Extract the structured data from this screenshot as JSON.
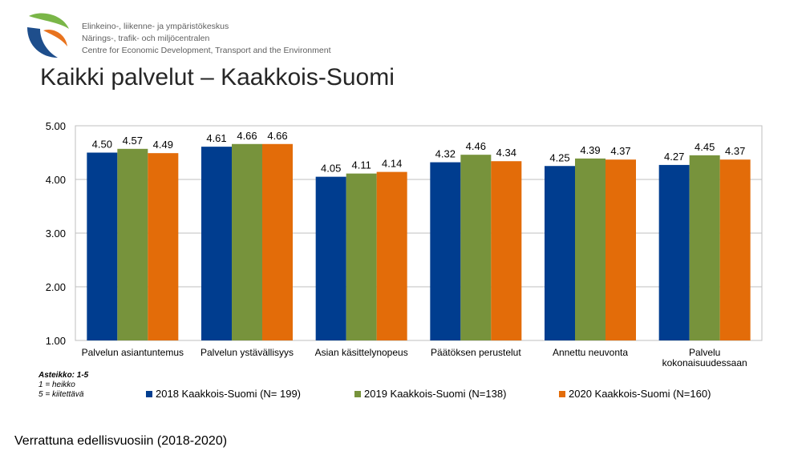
{
  "header": {
    "org_lines": [
      "Elinkeino-, liikenne- ja ympäristökeskus",
      "Närings-, trafik- och miljöcentralen",
      "Centre for Economic Development, Transport and the Environment"
    ],
    "title": "Kaikki palvelut – Kaakkois-Suomi"
  },
  "scale_note": {
    "heading": "Asteikko: 1-5",
    "line1": "1 = heikko",
    "line2": "5 = kiitettävä"
  },
  "footer": "Verrattuna edellisvuosiin (2018-2020)",
  "chart_data": {
    "type": "bar",
    "categories": [
      [
        "Palvelun asiantuntemus"
      ],
      [
        "Palvelun ystävällisyys"
      ],
      [
        "Asian käsittelynopeus"
      ],
      [
        "Päätöksen perustelut"
      ],
      [
        "Annettu neuvonta"
      ],
      [
        "Palvelu",
        "kokonaisuudessaan"
      ]
    ],
    "series": [
      {
        "name": "2018 Kaakkois-Suomi (N= 199)",
        "color": "#003D8F",
        "values": [
          4.5,
          4.61,
          4.05,
          4.32,
          4.25,
          4.27
        ]
      },
      {
        "name": "2019 Kaakkois-Suomi (N=138)",
        "color": "#77933C",
        "values": [
          4.57,
          4.66,
          4.11,
          4.46,
          4.39,
          4.45
        ]
      },
      {
        "name": "2020 Kaakkois-Suomi (N=160)",
        "color": "#E36C09",
        "values": [
          4.49,
          4.66,
          4.14,
          4.34,
          4.37,
          4.37
        ]
      }
    ],
    "ylim": [
      1.0,
      5.0
    ],
    "yticks": [
      "1.00",
      "2.00",
      "3.00",
      "4.00",
      "5.00"
    ],
    "grid": true,
    "legend_placement": "bottom",
    "data_labels": true
  }
}
